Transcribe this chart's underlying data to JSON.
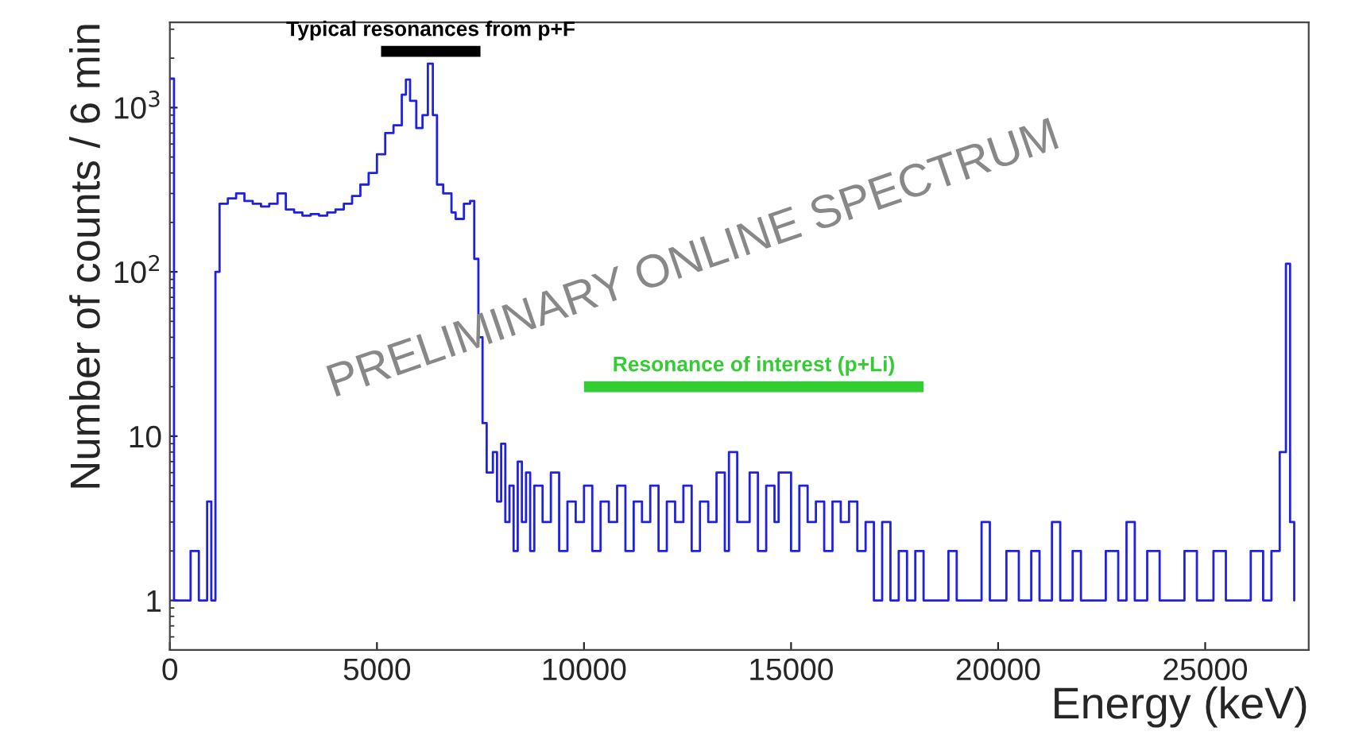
{
  "chart_data": {
    "type": "step",
    "xlabel": "Energy (keV)",
    "ylabel": "Number of counts / 6 min",
    "log": "y",
    "grid": false,
    "legend": false,
    "marker": "none",
    "line_style": "solid",
    "xlim": [
      0,
      27500
    ],
    "xticks": [
      0,
      5000,
      10000,
      15000,
      20000,
      25000
    ],
    "ylim": [
      0.5,
      3300
    ],
    "yticks": [
      1,
      10,
      {
        "value": 100,
        "label": "10$^{2}$"
      },
      {
        "value": 1000,
        "label": "10$^{3}$"
      }
    ],
    "series": [
      {
        "color": "#2020e0",
        "x": [
          0,
          100,
          300,
          500,
          700,
          900,
          1000,
          1100,
          1200,
          1400,
          1600,
          1800,
          2000,
          2200,
          2400,
          2600,
          2800,
          3000,
          3200,
          3400,
          3600,
          3800,
          4000,
          4200,
          4400,
          4600,
          4800,
          5000,
          5200,
          5400,
          5600,
          5700,
          5800,
          5950,
          6100,
          6230,
          6350,
          6450,
          6600,
          6800,
          6900,
          7100,
          7250,
          7350,
          7450,
          7550,
          7650,
          7800,
          7900,
          8000,
          8100,
          8200,
          8300,
          8400,
          8500,
          8600,
          8700,
          8800,
          9000,
          9200,
          9400,
          9600,
          9800,
          10000,
          10200,
          10400,
          10600,
          10800,
          11000,
          11200,
          11400,
          11600,
          11800,
          12000,
          12200,
          12400,
          12600,
          12800,
          13000,
          13200,
          13400,
          13500,
          13700,
          14000,
          14200,
          14400,
          14600,
          14700,
          15000,
          15200,
          15400,
          15600,
          15800,
          16000,
          16200,
          16400,
          16600,
          16800,
          17000,
          17200,
          17400,
          17600,
          17800,
          18000,
          18200,
          18500,
          18800,
          19000,
          19300,
          19600,
          19800,
          20200,
          20500,
          20800,
          21000,
          21300,
          21500,
          21800,
          22000,
          22300,
          22600,
          22900,
          23100,
          23300,
          23600,
          23900,
          24200,
          24500,
          24800,
          25200,
          25500,
          25800,
          26100,
          26400,
          26600,
          26800,
          26950,
          27050,
          27150
        ],
        "values": [
          1500,
          1,
          1,
          2,
          1,
          4,
          1,
          100,
          260,
          280,
          300,
          270,
          260,
          250,
          260,
          300,
          240,
          230,
          220,
          225,
          220,
          230,
          240,
          260,
          290,
          340,
          400,
          520,
          700,
          780,
          1200,
          1480,
          1100,
          750,
          900,
          1850,
          900,
          340,
          300,
          230,
          210,
          260,
          270,
          120,
          40,
          12,
          6,
          8,
          4,
          9,
          3,
          5,
          2,
          7,
          3,
          6,
          2,
          5,
          3,
          6,
          2,
          4,
          3,
          5,
          2,
          4,
          3,
          5,
          2,
          4,
          3,
          5,
          2,
          4,
          3,
          5,
          2,
          4,
          3,
          6,
          2,
          8,
          3,
          6,
          2,
          5,
          3,
          6,
          2,
          5,
          3,
          4,
          2,
          4,
          3,
          4,
          2,
          3,
          1,
          3,
          1,
          2,
          1,
          2,
          1,
          1,
          2,
          1,
          1,
          3,
          1,
          2,
          1,
          2,
          1,
          3,
          1,
          2,
          1,
          1,
          2,
          1,
          3,
          1,
          2,
          1,
          1,
          2,
          1,
          2,
          1,
          1,
          2,
          1,
          2,
          8,
          112,
          3,
          1
        ]
      },
      {
        "type": "line",
        "color": "#000000",
        "x": [
          5100,
          7500
        ],
        "values": [
          2200,
          2200
        ]
      },
      {
        "type": "line",
        "color": "#33cc33",
        "x": [
          10000,
          18200
        ],
        "values": [
          20,
          20
        ]
      }
    ],
    "annotations": [
      "Typical resonances from p+F",
      "Resonance of interest (p+Li)",
      "PRELIMINARY ONLINE SPECTRUM"
    ]
  }
}
